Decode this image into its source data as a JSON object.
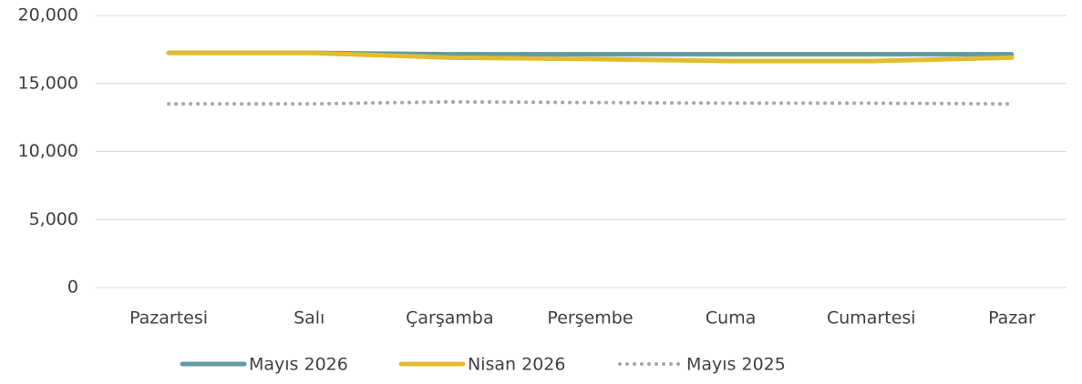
{
  "chart_data": {
    "type": "line",
    "categories": [
      "Pazartesi",
      "Salı",
      "Çarşamba",
      "Perşembe",
      "Cuma",
      "Cumartesi",
      "Pazar"
    ],
    "series": [
      {
        "name": "Mayıs 2026",
        "color": "#5f9ba3",
        "style": "solid",
        "values": [
          17250,
          17250,
          17150,
          17150,
          17150,
          17150,
          17150
        ]
      },
      {
        "name": "Nisan 2026",
        "color": "#e1bd2f",
        "style": "solid",
        "values": [
          17250,
          17250,
          16900,
          16800,
          16650,
          16650,
          16900
        ]
      },
      {
        "name": "Mayıs 2025",
        "color": "#a6a6a6",
        "style": "dotted",
        "values": [
          13500,
          13500,
          13650,
          13600,
          13550,
          13550,
          13500
        ]
      }
    ],
    "ylim": [
      0,
      20000
    ],
    "yticks": [
      0,
      {
        "value": 5000,
        "label": "5,000"
      },
      {
        "value": 10000,
        "label": "10,000"
      },
      {
        "value": 15000,
        "label": "15,000"
      },
      {
        "value": 20000,
        "label": "20,000"
      }
    ],
    "grid": true,
    "legend": "bottom"
  }
}
